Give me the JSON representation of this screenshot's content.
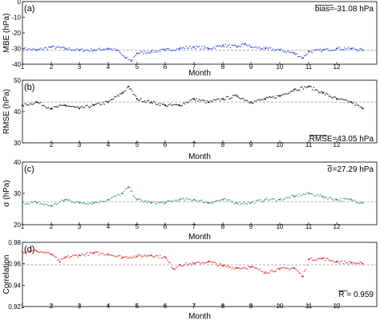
{
  "chart_data": [
    {
      "type": "scatter",
      "panel": "(a)",
      "ylabel": "MBE (hPa)",
      "xlabel": "Month",
      "ylim": [
        -40,
        0
      ],
      "yticks": [
        "0",
        "-10",
        "-20",
        "-30",
        "-40"
      ],
      "xlim": [
        1,
        13
      ],
      "xticks": [
        "1",
        "2",
        "3",
        "4",
        "5",
        "6",
        "7",
        "8",
        "9",
        "10",
        "11",
        "12"
      ],
      "stat_label": "bias=-31.08 hPa",
      "mean": -31.08,
      "color": "#3c4bd6",
      "series": [
        {
          "x": [
            1.0,
            1.5,
            2.0,
            2.5,
            3.0,
            3.5,
            4.0,
            4.3,
            4.6,
            4.8,
            5.0,
            5.5,
            6.0,
            6.5,
            7.0,
            7.5,
            8.0,
            8.5,
            8.8,
            9.0,
            9.5,
            10.0,
            10.5,
            10.8,
            11.0,
            11.5,
            12.0,
            12.5,
            12.9
          ],
          "values": [
            -30,
            -31,
            -29,
            -30,
            -31,
            -31,
            -30,
            -31,
            -36,
            -38,
            -33,
            -32,
            -31,
            -30,
            -29,
            -30,
            -28,
            -29,
            -27,
            -29,
            -30,
            -31,
            -33,
            -36,
            -32,
            -31,
            -30,
            -30,
            -31
          ]
        }
      ]
    },
    {
      "type": "scatter",
      "panel": "(b)",
      "ylabel": "RMSE (hPa)",
      "xlabel": "Month",
      "ylim": [
        30,
        50
      ],
      "yticks": [
        "50",
        "40",
        "30"
      ],
      "xlim": [
        1,
        13
      ],
      "xticks": [
        "2",
        "3",
        "4",
        "5",
        "6",
        "7",
        "8",
        "9",
        "10",
        "11",
        "12"
      ],
      "stat_label": "RMSE=43.05 hPa",
      "mean": 43.05,
      "color": "#1a1a1a",
      "series": [
        {
          "x": [
            1.0,
            1.5,
            2.0,
            2.5,
            3.0,
            3.5,
            4.0,
            4.5,
            4.7,
            5.0,
            5.5,
            6.0,
            6.5,
            7.0,
            7.5,
            8.0,
            8.5,
            9.0,
            9.5,
            10.0,
            10.5,
            11.0,
            11.5,
            12.0,
            12.5,
            12.9
          ],
          "values": [
            42,
            43,
            41,
            42,
            41,
            42,
            43,
            46,
            48,
            44,
            43,
            42,
            42,
            44,
            43,
            44,
            45,
            43,
            44,
            45,
            47,
            48,
            46,
            44,
            43,
            41
          ]
        }
      ]
    },
    {
      "type": "scatter",
      "panel": "(c)",
      "ylabel": "σ (hPa)",
      "xlabel": "Month",
      "ylim": [
        20,
        40
      ],
      "yticks": [
        "40",
        "30",
        "20"
      ],
      "xlim": [
        1,
        13
      ],
      "xticks": [
        "1",
        "2",
        "3",
        "4",
        "5",
        "6",
        "7",
        "8",
        "9",
        "10",
        "11",
        "12"
      ],
      "stat_label": "σ=27.29 hPa",
      "mean": 27.29,
      "color": "#3e9a6e",
      "series": [
        {
          "x": [
            1.0,
            1.5,
            2.0,
            2.5,
            3.0,
            3.5,
            4.0,
            4.5,
            4.7,
            5.0,
            5.5,
            6.0,
            6.5,
            7.0,
            7.5,
            8.0,
            8.5,
            9.0,
            9.5,
            10.0,
            10.5,
            11.0,
            11.5,
            12.0,
            12.5,
            12.9
          ],
          "values": [
            27,
            27,
            26,
            28,
            27,
            27,
            28,
            30,
            32,
            28,
            27,
            27,
            28,
            28,
            27,
            28,
            27,
            27,
            28,
            28,
            29,
            30,
            29,
            28,
            28,
            27
          ]
        }
      ]
    },
    {
      "type": "scatter",
      "panel": "(d)",
      "ylabel": "Correlation",
      "xlabel": "Month",
      "ylim": [
        0.92,
        0.98
      ],
      "yticks": [
        "0.98",
        "0.96",
        "0.94",
        "0.92"
      ],
      "xlim": [
        1,
        13
      ],
      "xticks": [
        "1",
        "2",
        "3",
        "4",
        "5",
        "6",
        "7",
        "8",
        "9",
        "10",
        "11",
        "12"
      ],
      "stat_label": "R = 0.959",
      "mean": 0.959,
      "color": "#e52a2a",
      "series": [
        {
          "x": [
            1.0,
            1.5,
            2.0,
            2.3,
            2.5,
            3.0,
            3.5,
            4.0,
            4.5,
            5.0,
            5.5,
            6.0,
            6.3,
            6.5,
            7.0,
            7.5,
            8.0,
            8.5,
            9.0,
            9.5,
            10.0,
            10.5,
            10.8,
            11.0,
            11.5,
            12.0,
            12.5,
            12.9
          ],
          "values": [
            0.971,
            0.972,
            0.969,
            0.962,
            0.966,
            0.968,
            0.97,
            0.969,
            0.966,
            0.967,
            0.968,
            0.966,
            0.955,
            0.959,
            0.96,
            0.962,
            0.958,
            0.956,
            0.957,
            0.952,
            0.955,
            0.956,
            0.948,
            0.964,
            0.965,
            0.962,
            0.961,
            0.96
          ]
        }
      ]
    }
  ]
}
